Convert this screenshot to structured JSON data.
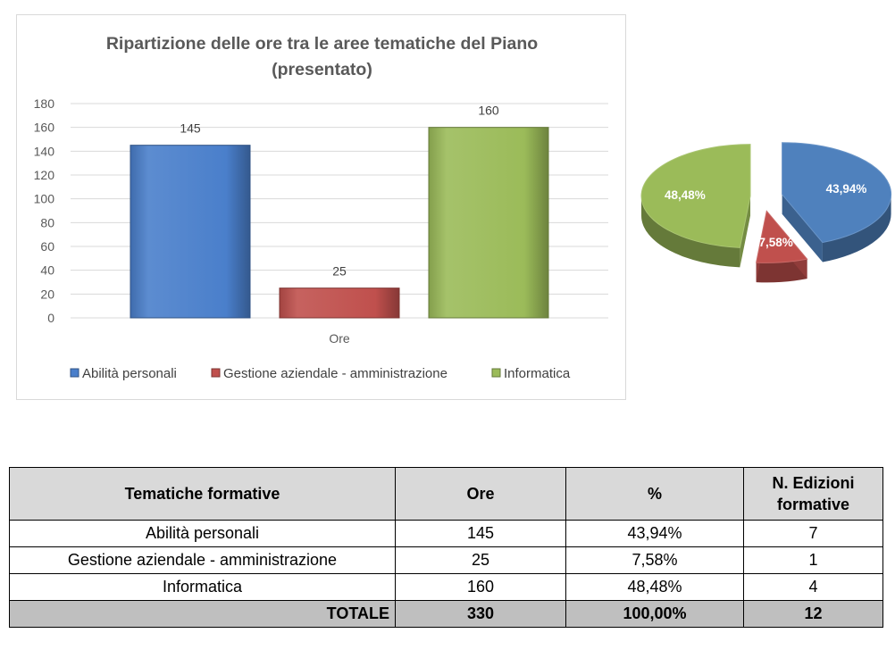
{
  "chart_data": [
    {
      "type": "bar",
      "title_line1": "Ripartizione delle ore tra le aree tematiche del Piano",
      "title_line2": "(presentato)",
      "categories": [
        "Ore"
      ],
      "xlabel": "Ore",
      "ylim": [
        0,
        180
      ],
      "yticks": [
        0,
        20,
        40,
        60,
        80,
        100,
        120,
        140,
        160,
        180
      ],
      "grid": true,
      "legend_position": "bottom",
      "series": [
        {
          "name": "Abilità personali",
          "values": [
            145
          ],
          "color": "#4a7fcb"
        },
        {
          "name": "Gestione aziendale - amministrazione",
          "values": [
            25
          ],
          "color": "#c0504d"
        },
        {
          "name": "Informatica",
          "values": [
            160
          ],
          "color": "#9bbb59"
        }
      ]
    },
    {
      "type": "pie",
      "style": "3d-exploded",
      "slices": [
        {
          "label": "43,94%",
          "value": 43.94,
          "color": "#4f81bd"
        },
        {
          "label": "7,58%",
          "value": 7.58,
          "color": "#c0504d"
        },
        {
          "label": "48,48%",
          "value": 48.48,
          "color": "#9bbb59"
        }
      ]
    }
  ],
  "table": {
    "headers": [
      "Tematiche formative",
      "Ore",
      "%",
      "N. Edizioni formative"
    ],
    "rows": [
      [
        "Abilità personali",
        "145",
        "43,94%",
        "7"
      ],
      [
        "Gestione aziendale - amministrazione",
        "25",
        "7,58%",
        "1"
      ],
      [
        "Informatica",
        "160",
        "48,48%",
        "4"
      ]
    ],
    "total": [
      "TOTALE",
      "330",
      "100,00%",
      "12"
    ]
  }
}
